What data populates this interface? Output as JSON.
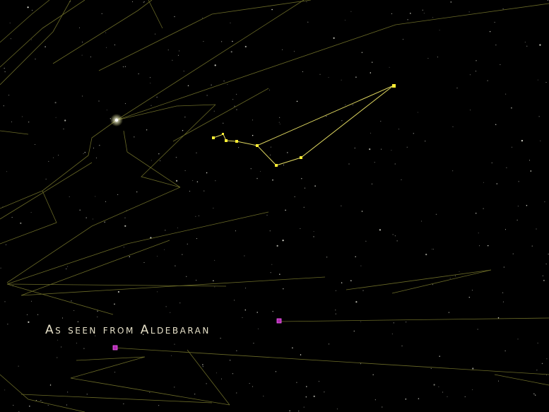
{
  "caption": "As seen from Aldebaran",
  "colors": {
    "background": "#000000",
    "constellation_line": "#a8a83a",
    "highlight_line": "#e8e070",
    "highlight_star": "#ffee33",
    "marker": "#cc33cc",
    "caption_text": "#e6e0c8"
  },
  "icons": {
    "bright_star": "star-glow-icon",
    "marker": "purple-square-marker-icon"
  }
}
